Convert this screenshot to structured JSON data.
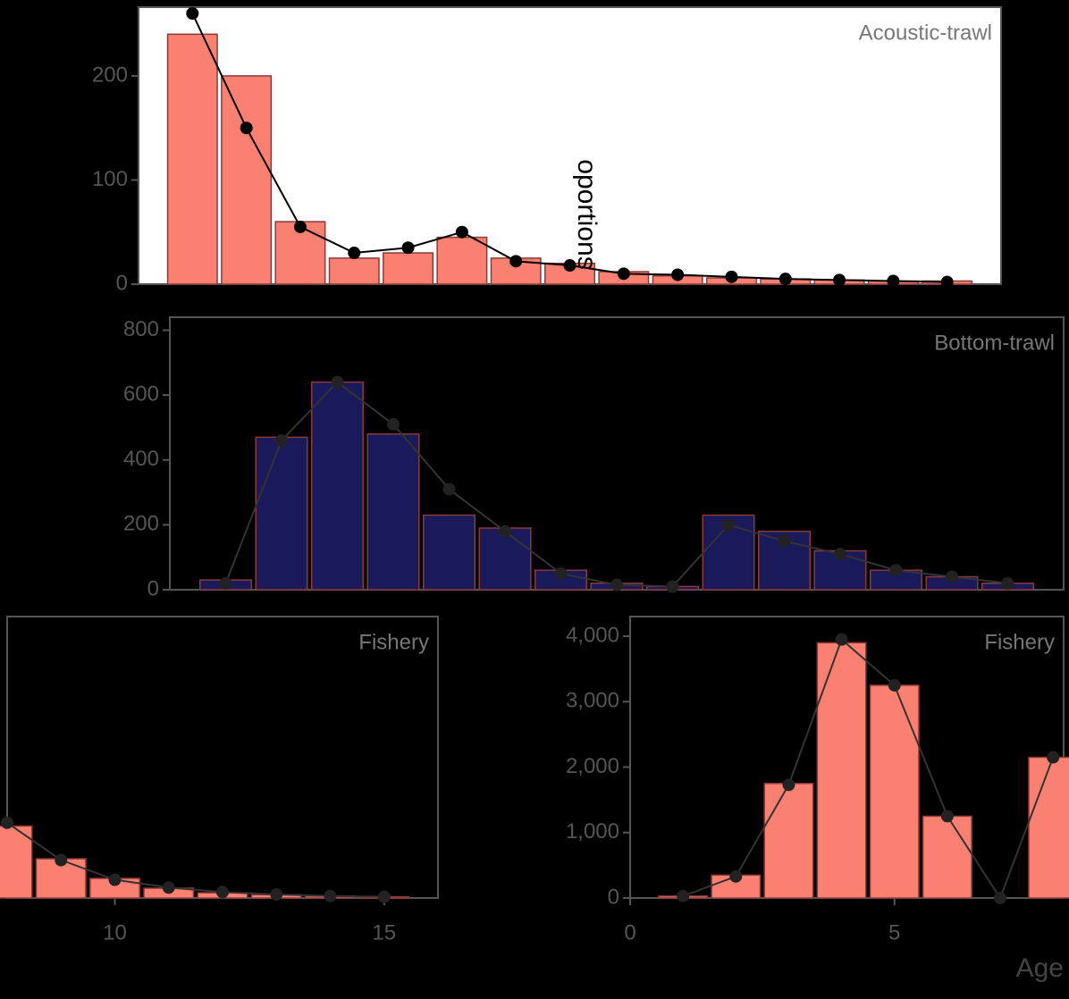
{
  "chart_data": [
    {
      "type": "bar-line",
      "facet": "Acoustic-trawl",
      "background": "#ffffff",
      "bar_color": "#fa8072",
      "line_color": "#000000",
      "x": [
        1,
        2,
        3,
        4,
        5,
        6,
        7,
        8,
        9,
        10,
        11,
        12,
        13,
        14,
        15
      ],
      "bar_values": [
        240,
        200,
        60,
        25,
        30,
        45,
        25,
        20,
        12,
        8,
        6,
        5,
        4,
        3,
        3
      ],
      "line_values": [
        260,
        150,
        55,
        30,
        35,
        50,
        22,
        18,
        10,
        9,
        7,
        5,
        4,
        3,
        2
      ],
      "xlim": [
        0,
        16
      ],
      "ylim": [
        0,
        266
      ],
      "yticks": [
        0,
        100,
        200
      ]
    },
    {
      "type": "bar-line",
      "facet": "Bottom-trawl",
      "background": "#000000",
      "bar_color": "#1a1a5a",
      "line_color": "#000000",
      "x": [
        1,
        2,
        3,
        4,
        5,
        6,
        7,
        8,
        9,
        10,
        11,
        12,
        13,
        14,
        15
      ],
      "bar_values": [
        30,
        470,
        640,
        480,
        230,
        190,
        60,
        20,
        10,
        230,
        180,
        120,
        60,
        40,
        20
      ],
      "line_values": [
        20,
        460,
        640,
        510,
        310,
        180,
        50,
        15,
        10,
        200,
        150,
        110,
        60,
        40,
        20
      ],
      "xlim": [
        0,
        16
      ],
      "ylim": [
        0,
        840
      ],
      "yticks": [
        0,
        200,
        400,
        600,
        800
      ]
    },
    {
      "type": "bar-line",
      "facet": "Fishery",
      "background": "#000000",
      "bar_color": "#fa8072",
      "line_color": "#000000",
      "x": [
        8,
        9,
        10,
        11,
        12,
        13,
        14,
        15
      ],
      "bar_values": [
        1100,
        600,
        300,
        150,
        80,
        50,
        30,
        20
      ],
      "line_values": [
        1150,
        580,
        280,
        160,
        90,
        55,
        30,
        20
      ],
      "xlim": [
        8,
        16
      ],
      "ylim": [
        0,
        4300
      ],
      "xticks": [
        10,
        15
      ]
    },
    {
      "type": "bar-line",
      "facet": "Fishery",
      "background": "#000000",
      "bar_color": "#fa8072",
      "line_color": "#000000",
      "x": [
        1,
        2,
        3,
        4,
        5,
        6,
        7,
        8
      ],
      "bar_values": [
        30,
        350,
        1750,
        3900,
        3250,
        1250,
        0,
        2150
      ],
      "line_values": [
        30,
        330,
        1730,
        3950,
        3250,
        1250,
        0,
        2150
      ],
      "xlim": [
        0,
        8.2
      ],
      "ylim": [
        0,
        4300
      ],
      "yticks": [
        0,
        {
          "value": 1000,
          "label": "1,000"
        },
        {
          "value": 2000,
          "label": "2,000"
        },
        {
          "value": 3000,
          "label": "3,000"
        },
        {
          "value": 4000,
          "label": "4,000"
        }
      ],
      "xticks": [
        0,
        5
      ]
    }
  ],
  "y_axis_label": "oportions",
  "x_axis_label": "Age"
}
